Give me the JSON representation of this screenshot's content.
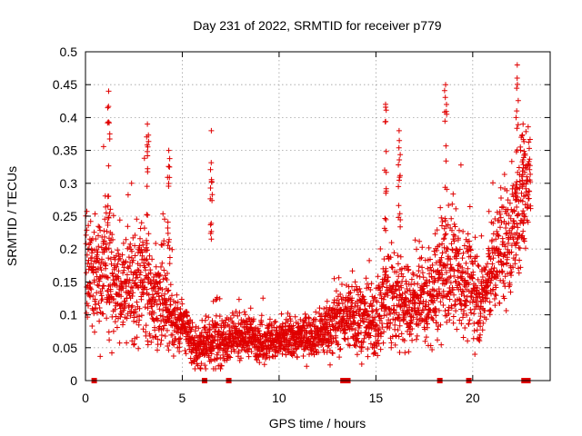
{
  "chart_data": {
    "type": "scatter",
    "title": "Day 231 of 2022, SRMTID for receiver p779",
    "xlabel": "GPS time / hours",
    "ylabel": "SRMTID / TECUs",
    "xlim": [
      0,
      24
    ],
    "ylim": [
      0,
      0.5
    ],
    "x_ticks": [
      0,
      5,
      10,
      15,
      20
    ],
    "y_ticks": [
      0,
      0.05,
      0.1,
      0.15,
      0.2,
      0.25,
      0.3,
      0.35,
      0.4,
      0.45,
      0.5
    ],
    "x_tick_labels": [
      "0",
      "5",
      "10",
      "15",
      "20"
    ],
    "y_tick_labels": [
      "0",
      "0.05",
      "0.1",
      "0.15",
      "0.2",
      "0.25",
      "0.3",
      "0.35",
      "0.4",
      "0.45",
      "0.5"
    ],
    "grid": true,
    "marker": "+",
    "series": [
      {
        "name": "SRMTID",
        "color": "#e00000",
        "envelope_hours": [
          0,
          0.5,
          1.0,
          1.5,
          2.0,
          2.5,
          3.0,
          3.5,
          4.0,
          4.5,
          5.0,
          5.5,
          6.0,
          6.5,
          7.0,
          7.5,
          8.0,
          8.5,
          9.0,
          9.5,
          10.0,
          10.5,
          11.0,
          11.5,
          12.0,
          12.5,
          13.0,
          13.5,
          14.0,
          14.5,
          15.0,
          15.5,
          16.0,
          16.5,
          17.0,
          17.5,
          18.0,
          18.5,
          19.0,
          19.5,
          20.0,
          20.5,
          21.0,
          21.5,
          22.0,
          22.5,
          23.0
        ],
        "envelope_center": [
          0.17,
          0.16,
          0.17,
          0.15,
          0.14,
          0.14,
          0.15,
          0.12,
          0.14,
          0.09,
          0.09,
          0.05,
          0.05,
          0.06,
          0.06,
          0.06,
          0.07,
          0.07,
          0.06,
          0.06,
          0.06,
          0.065,
          0.065,
          0.07,
          0.07,
          0.08,
          0.09,
          0.1,
          0.1,
          0.09,
          0.09,
          0.13,
          0.12,
          0.11,
          0.12,
          0.12,
          0.13,
          0.16,
          0.17,
          0.15,
          0.14,
          0.12,
          0.17,
          0.2,
          0.22,
          0.27,
          0.31
        ],
        "envelope_spread": [
          0.06,
          0.05,
          0.07,
          0.05,
          0.05,
          0.05,
          0.06,
          0.04,
          0.06,
          0.03,
          0.03,
          0.02,
          0.02,
          0.03,
          0.025,
          0.02,
          0.02,
          0.02,
          0.02,
          0.02,
          0.02,
          0.02,
          0.02,
          0.02,
          0.02,
          0.03,
          0.03,
          0.03,
          0.04,
          0.03,
          0.04,
          0.06,
          0.05,
          0.04,
          0.04,
          0.04,
          0.05,
          0.06,
          0.06,
          0.05,
          0.05,
          0.04,
          0.05,
          0.06,
          0.06,
          0.07,
          0.05
        ],
        "spikes": [
          {
            "x": 1.2,
            "top": 0.44
          },
          {
            "x": 3.2,
            "top": 0.39
          },
          {
            "x": 4.3,
            "top": 0.35
          },
          {
            "x": 6.5,
            "top": 0.38
          },
          {
            "x": 15.5,
            "top": 0.42
          },
          {
            "x": 16.2,
            "top": 0.38
          },
          {
            "x": 18.6,
            "top": 0.45
          },
          {
            "x": 22.3,
            "top": 0.48
          },
          {
            "x": 22.6,
            "top": 0.39
          }
        ],
        "zero_markers": [
          0.45,
          6.15,
          7.4,
          13.3,
          13.55,
          18.3,
          19.8,
          22.65,
          22.85
        ]
      }
    ]
  }
}
